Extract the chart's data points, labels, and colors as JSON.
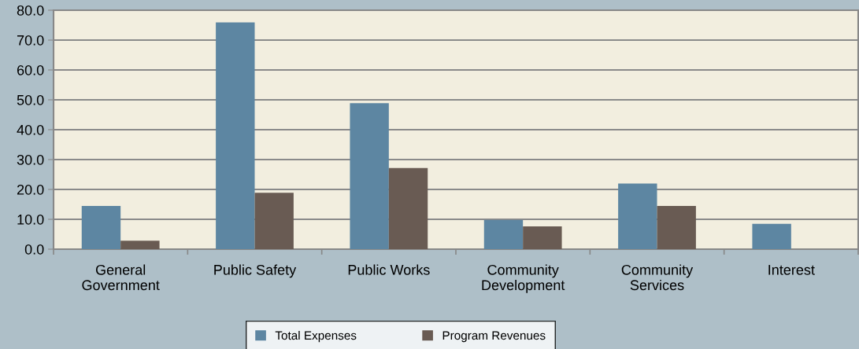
{
  "chart_data": {
    "type": "bar",
    "categories": [
      "General\nGovernment",
      "Public Safety",
      "Public Works",
      "Community\nDevelopment",
      "Community\nServices",
      "Interest"
    ],
    "series": [
      {
        "name": "Total Expenses",
        "color": "#5d86a2",
        "values": [
          14.5,
          75.9,
          48.9,
          9.8,
          22.0,
          8.5
        ]
      },
      {
        "name": "Program Revenues",
        "color": "#695b53",
        "values": [
          2.8,
          18.9,
          27.2,
          7.6,
          14.5,
          0
        ]
      }
    ],
    "ylim": [
      0,
      80
    ],
    "yticks": [
      {
        "value": 0,
        "label": "0.0"
      },
      {
        "value": 10,
        "label": "10.0"
      },
      {
        "value": 20,
        "label": "20.0"
      },
      {
        "value": 30,
        "label": "30.0"
      },
      {
        "value": 40,
        "label": "40.0"
      },
      {
        "value": 50,
        "label": "50.0"
      },
      {
        "value": 60,
        "label": "60.0"
      },
      {
        "value": 70,
        "label": "70.0"
      },
      {
        "value": 80,
        "label": "80.0"
      }
    ],
    "grid": "y",
    "legend": "bottom"
  }
}
